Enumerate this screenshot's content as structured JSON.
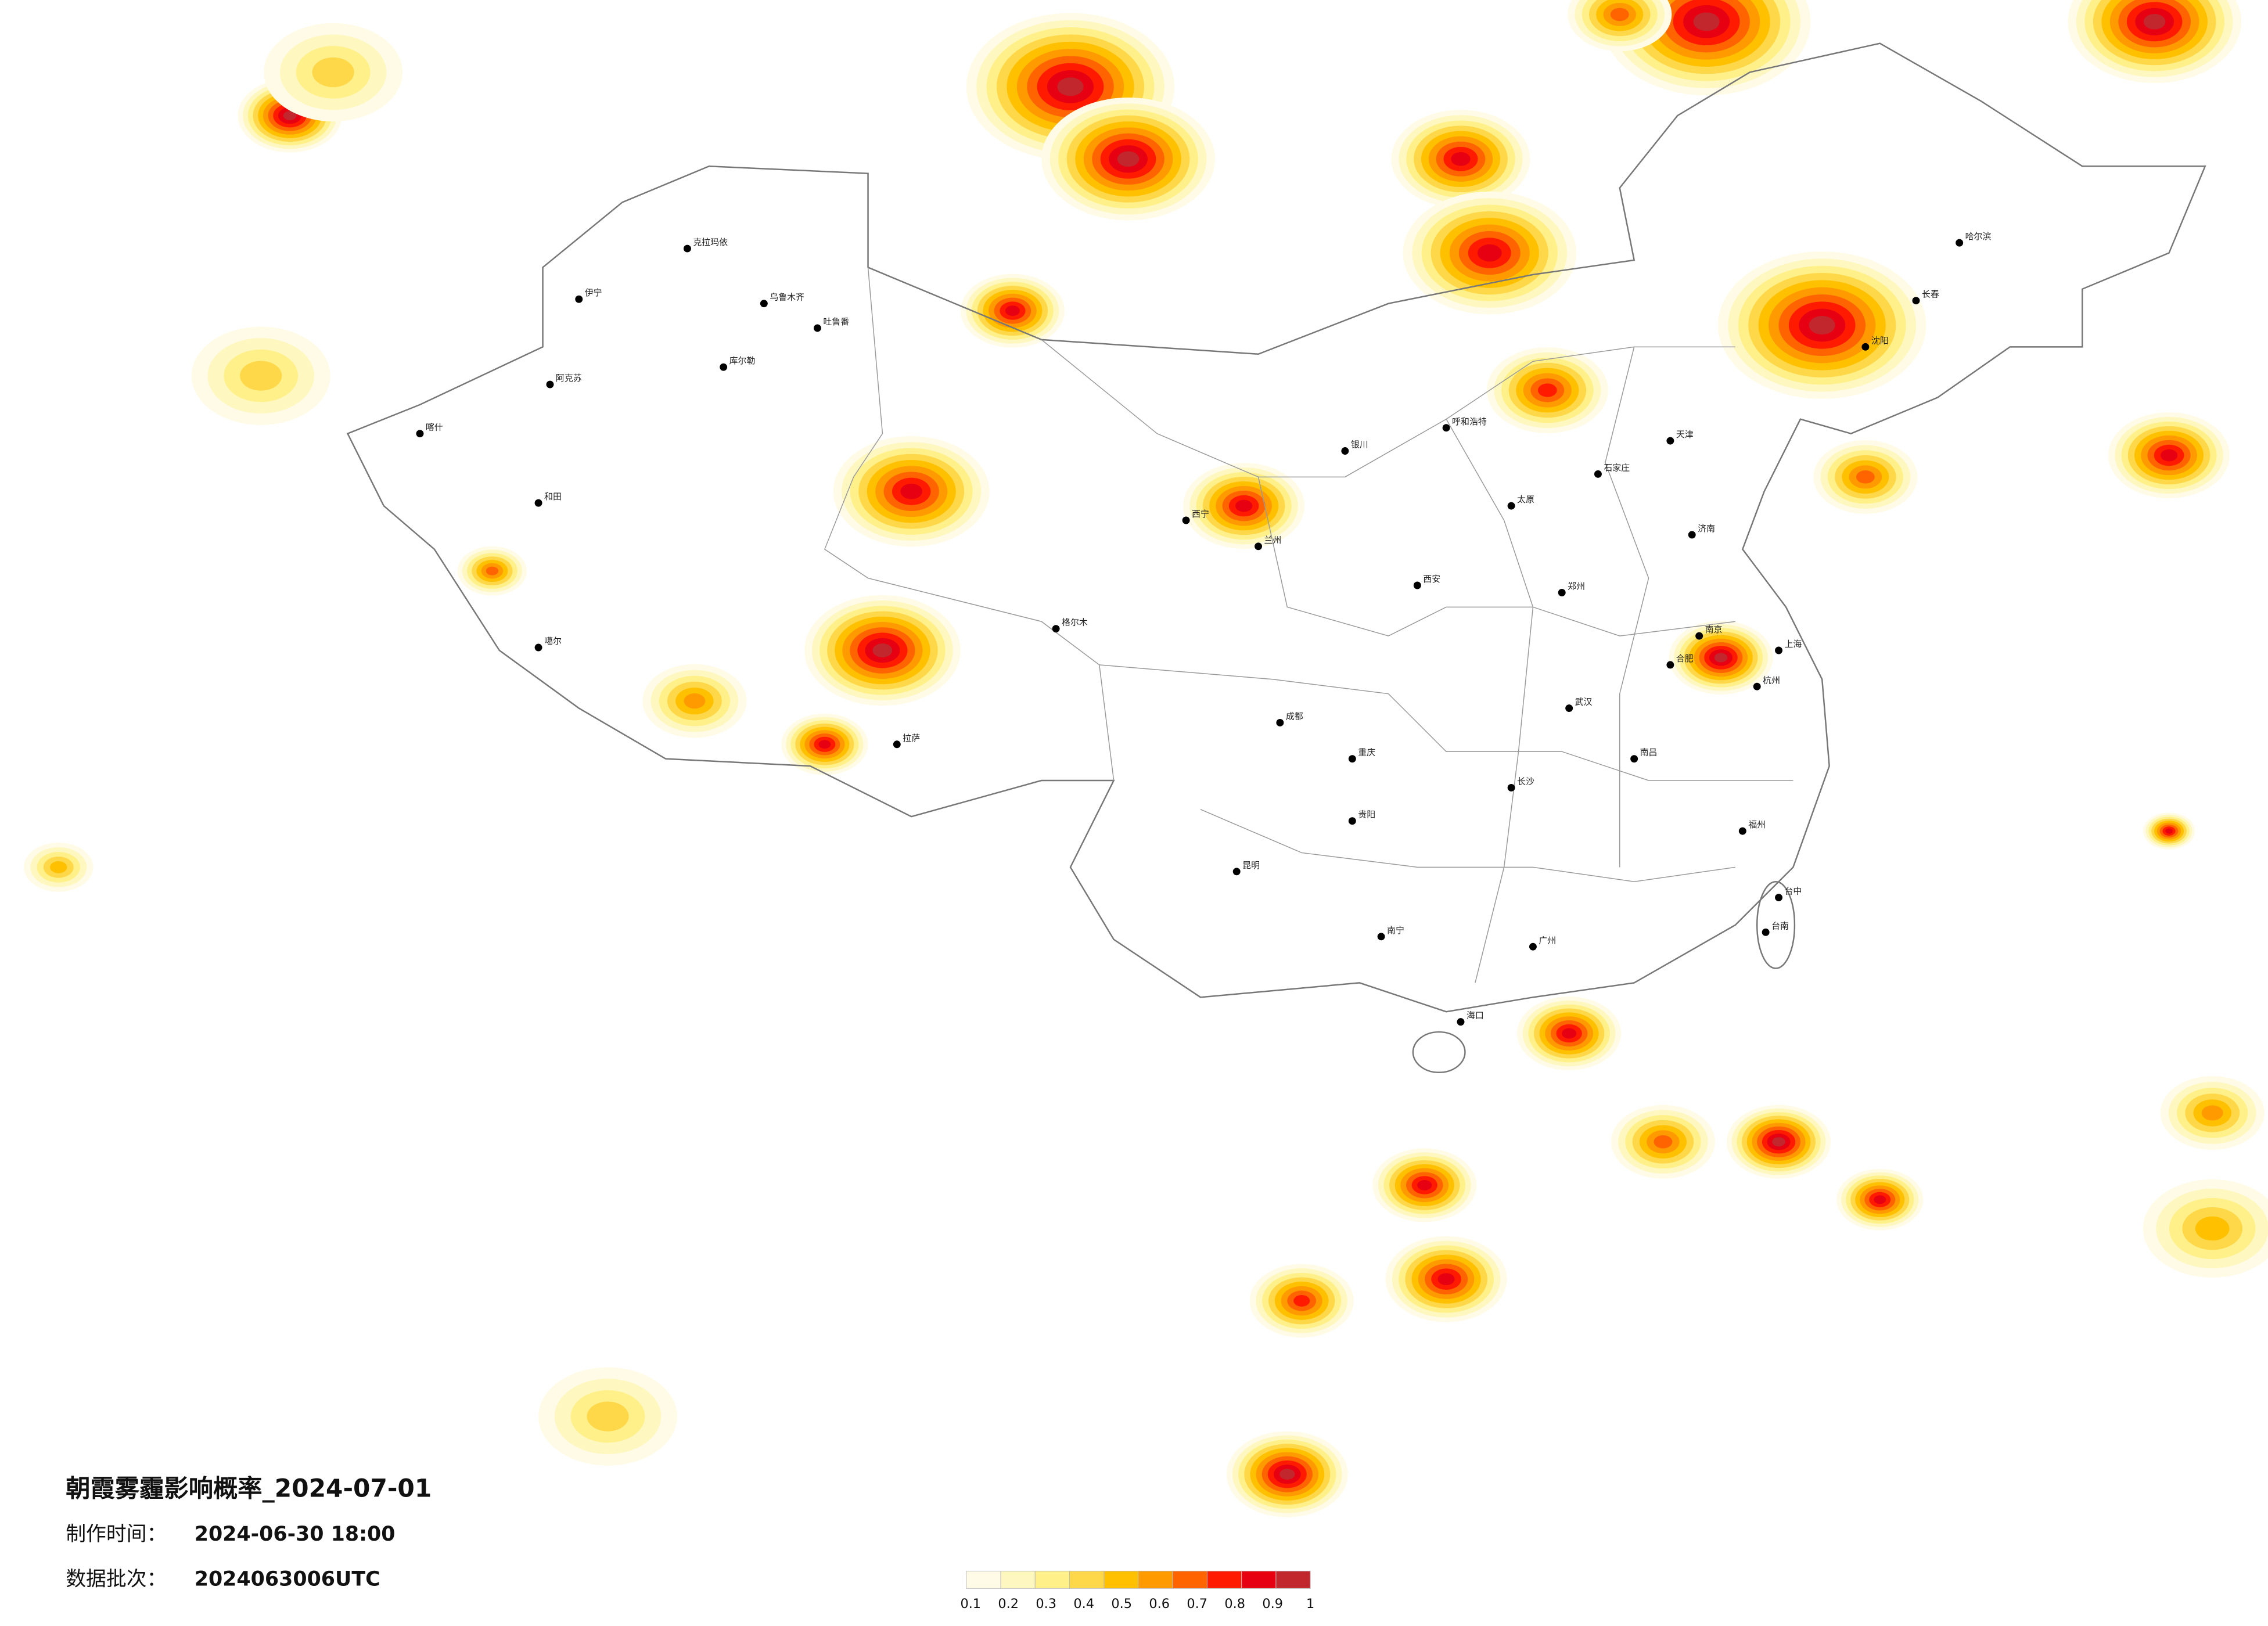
{
  "title": "朝霞雾霾影响概率_2024-07-01",
  "made_time": {
    "label": "制作时间：",
    "value": "2024-06-30 18:00"
  },
  "batch": {
    "label": "数据批次：",
    "value": "2024063006UTC"
  },
  "legend": {
    "colors": [
      "#fffbe6",
      "#fff7c0",
      "#fff08a",
      "#ffd84a",
      "#ffc000",
      "#ff9a00",
      "#ff6400",
      "#ff1a00",
      "#e60012",
      "#c1272d"
    ],
    "ticks": [
      0.1,
      0.2,
      0.3,
      0.4,
      0.5,
      0.6,
      0.7,
      0.8,
      0.9,
      1
    ]
  },
  "cities": [
    "克拉玛依",
    "伊宁",
    "乌鲁木齐",
    "吐鲁番",
    "库尔勒",
    "阿克苏",
    "喀什",
    "和田",
    "噶尔",
    "格尔木",
    "拉萨",
    "西宁",
    "兰州",
    "银川",
    "呼和浩特",
    "哈尔滨",
    "长春",
    "沈阳",
    "天津",
    "石家庄",
    "济南",
    "南京",
    "上海",
    "杭州",
    "合肥",
    "武汉",
    "长沙",
    "南昌",
    "福州",
    "广州",
    "南宁",
    "海口",
    "贵阳",
    "昆明",
    "成都",
    "重庆",
    "西安",
    "郑州",
    "太原",
    "台中",
    "台南"
  ]
}
